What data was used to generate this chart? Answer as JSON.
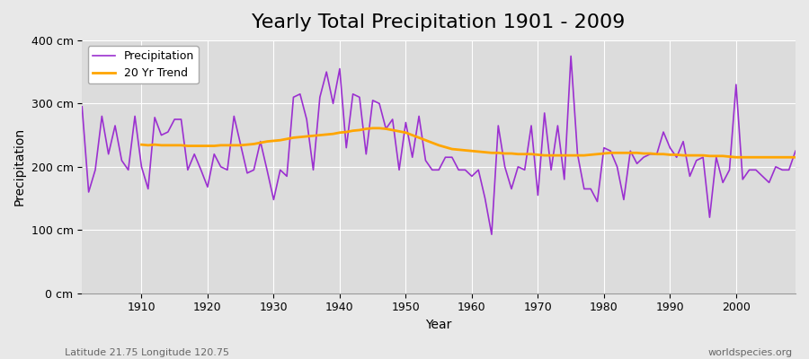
{
  "title": "Yearly Total Precipitation 1901 - 2009",
  "xlabel": "Year",
  "ylabel": "Precipitation",
  "footnote_left": "Latitude 21.75 Longitude 120.75",
  "footnote_right": "worldspecies.org",
  "years": [
    1901,
    1902,
    1903,
    1904,
    1905,
    1906,
    1907,
    1908,
    1909,
    1910,
    1911,
    1912,
    1913,
    1914,
    1915,
    1916,
    1917,
    1918,
    1919,
    1920,
    1921,
    1922,
    1923,
    1924,
    1925,
    1926,
    1927,
    1928,
    1929,
    1930,
    1931,
    1932,
    1933,
    1934,
    1935,
    1936,
    1937,
    1938,
    1939,
    1940,
    1941,
    1942,
    1943,
    1944,
    1945,
    1946,
    1947,
    1948,
    1949,
    1950,
    1951,
    1952,
    1953,
    1954,
    1955,
    1956,
    1957,
    1958,
    1959,
    1960,
    1961,
    1962,
    1963,
    1964,
    1965,
    1966,
    1967,
    1968,
    1969,
    1970,
    1971,
    1972,
    1973,
    1974,
    1975,
    1976,
    1977,
    1978,
    1979,
    1980,
    1981,
    1982,
    1983,
    1984,
    1985,
    1986,
    1987,
    1988,
    1989,
    1990,
    1991,
    1992,
    1993,
    1994,
    1995,
    1996,
    1997,
    1998,
    1999,
    2000,
    2001,
    2002,
    2003,
    2004,
    2005,
    2006,
    2007,
    2008,
    2009
  ],
  "precip": [
    295,
    160,
    195,
    280,
    220,
    265,
    210,
    195,
    280,
    200,
    165,
    278,
    250,
    255,
    275,
    275,
    195,
    220,
    195,
    168,
    220,
    200,
    195,
    280,
    235,
    190,
    195,
    240,
    195,
    148,
    195,
    185,
    310,
    315,
    275,
    195,
    310,
    350,
    300,
    355,
    230,
    315,
    310,
    220,
    305,
    300,
    260,
    275,
    195,
    270,
    215,
    280,
    210,
    195,
    195,
    215,
    215,
    195,
    195,
    185,
    195,
    150,
    93,
    265,
    200,
    165,
    200,
    195,
    265,
    155,
    285,
    195,
    265,
    180,
    375,
    220,
    165,
    165,
    145,
    230,
    225,
    200,
    148,
    225,
    205,
    215,
    220,
    220,
    255,
    230,
    215,
    240,
    185,
    210,
    215,
    120,
    215,
    175,
    195,
    330,
    180,
    195,
    195,
    185,
    175,
    200,
    195,
    195,
    225
  ],
  "trend_years": [
    1910,
    1911,
    1912,
    1913,
    1914,
    1915,
    1916,
    1917,
    1918,
    1919,
    1920,
    1921,
    1922,
    1923,
    1924,
    1925,
    1926,
    1927,
    1928,
    1929,
    1930,
    1931,
    1932,
    1933,
    1934,
    1935,
    1936,
    1937,
    1938,
    1939,
    1940,
    1941,
    1942,
    1943,
    1944,
    1945,
    1946,
    1947,
    1948,
    1949,
    1950,
    1951,
    1952,
    1953,
    1954,
    1955,
    1956,
    1957,
    1958,
    1959,
    1960,
    1961,
    1962,
    1963,
    1964,
    1965,
    1966,
    1967,
    1968,
    1969,
    1970,
    1971,
    1972,
    1973,
    1974,
    1975,
    1976,
    1977,
    1978,
    1979,
    1980,
    1981,
    1982,
    1983,
    1984,
    1985,
    1986,
    1987,
    1988,
    1989,
    1990,
    1991,
    1992,
    1993,
    1994,
    1995,
    1996,
    1997,
    1998,
    1999,
    2000,
    2001,
    2002,
    2003,
    2004,
    2005,
    2006,
    2007,
    2008,
    2009
  ],
  "trend": [
    235,
    234,
    235,
    234,
    234,
    234,
    234,
    233,
    233,
    233,
    233,
    233,
    234,
    234,
    234,
    234,
    235,
    236,
    238,
    240,
    241,
    242,
    244,
    246,
    247,
    248,
    249,
    250,
    251,
    252,
    254,
    255,
    257,
    258,
    260,
    261,
    261,
    260,
    258,
    256,
    254,
    250,
    246,
    242,
    238,
    234,
    231,
    228,
    227,
    226,
    225,
    224,
    223,
    222,
    222,
    221,
    221,
    220,
    220,
    220,
    219,
    218,
    218,
    218,
    218,
    218,
    218,
    218,
    219,
    220,
    221,
    222,
    222,
    222,
    222,
    222,
    221,
    221,
    220,
    220,
    219,
    219,
    218,
    218,
    218,
    218,
    217,
    217,
    217,
    216,
    215,
    215,
    215,
    215,
    215,
    215,
    215,
    215,
    215,
    215
  ],
  "precip_color": "#9b30d0",
  "trend_color": "#ffa500",
  "bg_color": "#e8e8e8",
  "plot_bg_color": "#dcdcdc",
  "grid_color": "#ffffff",
  "ylim": [
    0,
    400
  ],
  "yticks": [
    0,
    100,
    200,
    300,
    400
  ],
  "ytick_labels": [
    "0 cm",
    "100 cm",
    "200 cm",
    "300 cm",
    "400 cm"
  ],
  "title_fontsize": 16,
  "axis_label_fontsize": 10,
  "tick_fontsize": 9,
  "legend_fontsize": 9
}
